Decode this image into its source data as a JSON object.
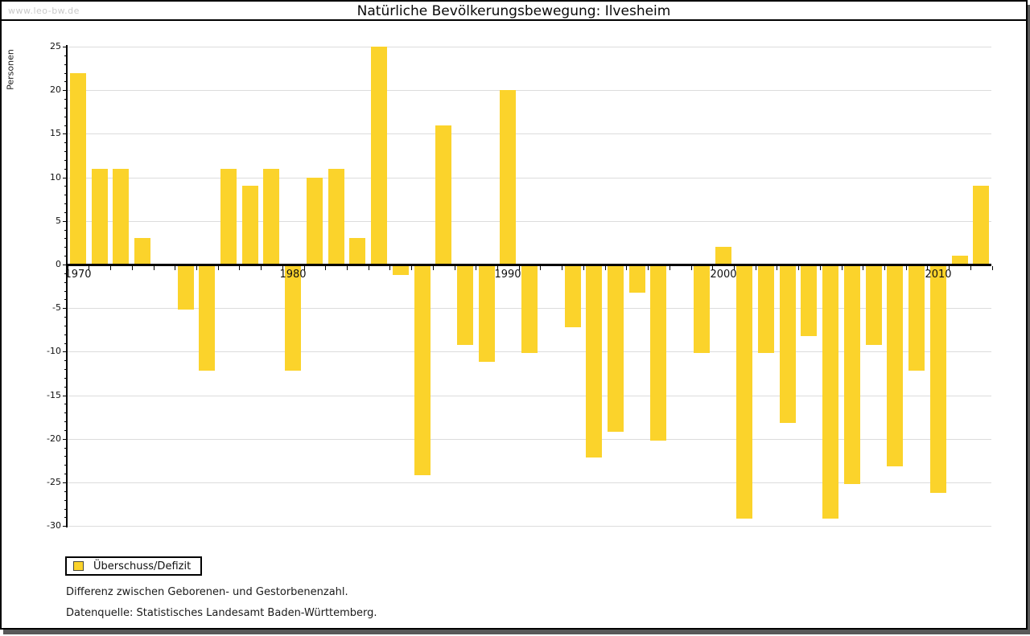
{
  "watermark": "www.leo-bw.de",
  "header": {
    "title": "Natürliche Bevölkerungsbewegung: Ilvesheim"
  },
  "chart_data": {
    "type": "bar",
    "title": "Natürliche Bevölkerungsbewegung: Ilvesheim",
    "xlabel": "",
    "ylabel": "Personen",
    "ylim": [
      -30,
      25
    ],
    "ytick_interval": 5,
    "grid": true,
    "x": [
      1970,
      1971,
      1972,
      1973,
      1974,
      1975,
      1976,
      1977,
      1978,
      1979,
      1980,
      1981,
      1982,
      1983,
      1984,
      1985,
      1986,
      1987,
      1988,
      1989,
      1990,
      1991,
      1992,
      1993,
      1994,
      1995,
      1996,
      1997,
      1998,
      1999,
      2000,
      2001,
      2002,
      2003,
      2004,
      2005,
      2006,
      2007,
      2008,
      2009,
      2010,
      2011,
      2012
    ],
    "values": [
      22,
      11,
      11,
      3,
      0,
      -5,
      -12,
      11,
      9,
      11,
      -12,
      10,
      11,
      3,
      25,
      -1,
      -24,
      16,
      -9,
      -11,
      20,
      -10,
      0,
      -7,
      -22,
      -19,
      -3,
      -20,
      0,
      -10,
      2,
      -29,
      -10,
      -18,
      -8,
      -29,
      -25,
      -9,
      -23,
      -12,
      -26,
      1,
      9
    ],
    "xtick_labels": [
      1970,
      1980,
      1990,
      2000,
      2010
    ],
    "legend": {
      "label": "Überschuss/Defizit",
      "position": "bottom-left"
    },
    "bar_color": "#fbd32b",
    "grid_color": "#dcdcdc",
    "axis_color": "#000000",
    "watermark_color": "#c9c9c9"
  },
  "footer": {
    "line1": "Differenz zwischen Geborenen- und Gestorbenenzahl.",
    "line2": "Datenquelle: Statistisches Landesamt Baden-Württemberg."
  }
}
